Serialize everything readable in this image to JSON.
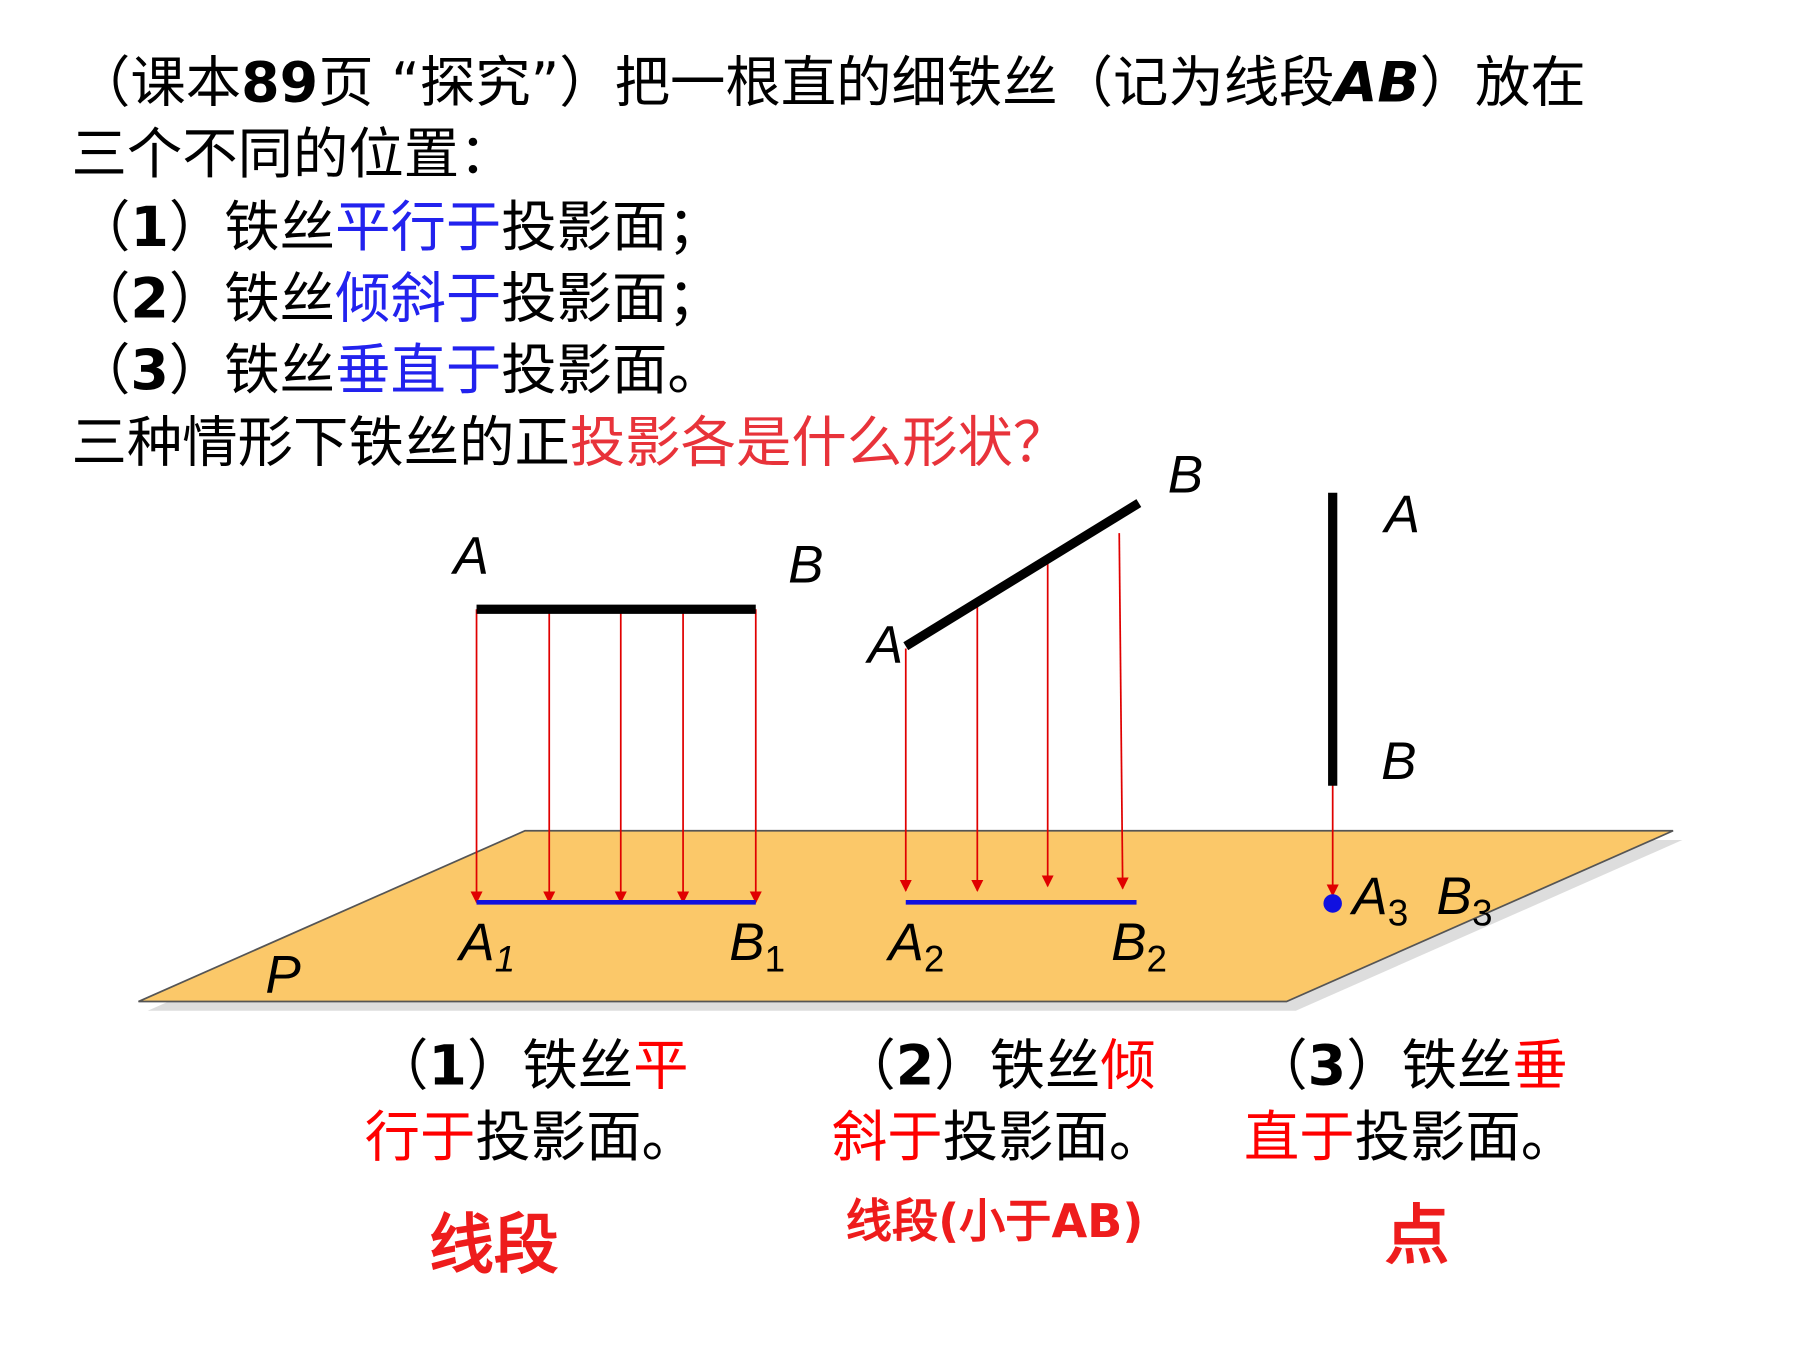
{
  "intro": {
    "lines": [
      [
        {
          "text": "（课本",
          "color": "#000000"
        },
        {
          "text": "89",
          "color": "#000000",
          "bold": true
        },
        {
          "text": "页 “探究”）把一根直的细铁丝（记为线段",
          "color": "#000000"
        },
        {
          "text": "AB",
          "color": "#000000",
          "bold": true,
          "italic": true
        },
        {
          "text": "）放在",
          "color": "#000000"
        }
      ],
      [
        {
          "text": "三个不同的位置：",
          "color": "#000000"
        }
      ],
      [
        {
          "text": "（",
          "color": "#000000"
        },
        {
          "text": "1",
          "color": "#000000",
          "bold": true
        },
        {
          "text": "）铁丝",
          "color": "#000000"
        },
        {
          "text": "平行于",
          "color": "#2222ee"
        },
        {
          "text": "投影面；",
          "color": "#000000"
        }
      ],
      [
        {
          "text": "（",
          "color": "#000000"
        },
        {
          "text": "2",
          "color": "#000000",
          "bold": true
        },
        {
          "text": "）铁丝",
          "color": "#000000"
        },
        {
          "text": "倾斜于",
          "color": "#2222ee"
        },
        {
          "text": "投影面；",
          "color": "#000000"
        }
      ],
      [
        {
          "text": "（",
          "color": "#000000"
        },
        {
          "text": "3",
          "color": "#000000",
          "bold": true
        },
        {
          "text": "）铁丝",
          "color": "#000000"
        },
        {
          "text": "垂直于",
          "color": "#2222ee"
        },
        {
          "text": "投影面。",
          "color": "#000000"
        }
      ],
      [
        {
          "text": "三种情形下铁丝的正",
          "color": "#000000"
        },
        {
          "text": "投影各是什么形状？",
          "color": "#e8333a"
        }
      ]
    ]
  },
  "diagram": {
    "labels": [
      {
        "text": "A"
      },
      {
        "text": "B"
      },
      {
        "text": "A"
      },
      {
        "text": "B"
      },
      {
        "text": "A"
      },
      {
        "text": "B"
      },
      {
        "text": "A",
        "sub": "1"
      },
      {
        "text": "B",
        "sub": "1"
      },
      {
        "text": "A",
        "sub": "2"
      },
      {
        "text": "B",
        "sub": "2"
      },
      {
        "text": "A",
        "sub": "3"
      },
      {
        "text": "B",
        "sub": "3"
      },
      {
        "text": "P"
      }
    ]
  },
  "captions": [
    {
      "lines": [
        [
          {
            "text": "（",
            "color": "#000000"
          },
          {
            "text": "1",
            "color": "#000000",
            "bold": true
          },
          {
            "text": "）铁丝",
            "color": "#000000"
          },
          {
            "text": "平",
            "color": "#ff0000"
          }
        ],
        [
          {
            "text": "行于",
            "color": "#ff0000"
          },
          {
            "text": "投影面。",
            "color": "#000000"
          }
        ]
      ]
    },
    {
      "lines": [
        [
          {
            "text": "（",
            "color": "#000000"
          },
          {
            "text": "2",
            "color": "#000000",
            "bold": true
          },
          {
            "text": "）铁丝",
            "color": "#000000"
          },
          {
            "text": "倾",
            "color": "#ff0000"
          }
        ],
        [
          {
            "text": "斜于",
            "color": "#ff0000"
          },
          {
            "text": "投影面。",
            "color": "#000000"
          }
        ]
      ]
    },
    {
      "lines": [
        [
          {
            "text": "（",
            "color": "#000000"
          },
          {
            "text": "3",
            "color": "#000000",
            "bold": true
          },
          {
            "text": "）铁丝",
            "color": "#000000"
          },
          {
            "text": "垂",
            "color": "#ff0000"
          }
        ],
        [
          {
            "text": "直于",
            "color": "#ff0000"
          },
          {
            "text": "投影面。",
            "color": "#000000"
          }
        ]
      ]
    }
  ],
  "answers": [
    {
      "text": "线段"
    },
    {
      "text": "线段(小于AB)"
    },
    {
      "text": "点"
    }
  ]
}
